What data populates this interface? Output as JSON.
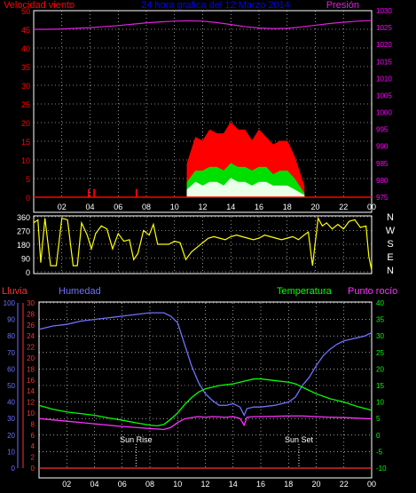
{
  "header": {
    "wind_label": "Velocidad viento",
    "title": "24 hora grafica del 12 Marzo 2014",
    "pressure_label": "Presión"
  },
  "colors": {
    "wind": "#ff0000",
    "gust_green": "#00e000",
    "gust_white": "#e8ffe8",
    "pressure": "#e020e0",
    "direction": "#ffff00",
    "humidity": "#7070ff",
    "temperature": "#00ff00",
    "dewpoint": "#ff30ff",
    "rain": "#ff3030",
    "title": "#0000ff",
    "axis_white": "#ffffff"
  },
  "chart_data": [
    {
      "type": "line",
      "name": "wind-pressure",
      "x_ticks": [
        "02",
        "04",
        "06",
        "08",
        "10",
        "12",
        "14",
        "16",
        "18",
        "20",
        "22",
        "00"
      ],
      "ylim_left": [
        0,
        50
      ],
      "y_ticks_left": [
        0,
        5,
        10,
        15,
        20,
        25,
        30,
        35,
        40,
        45,
        50
      ],
      "ylim_right": [
        975,
        1030
      ],
      "y_ticks_right": [
        975,
        980,
        985,
        990,
        995,
        1000,
        1005,
        1010,
        1015,
        1020,
        1025,
        1030
      ],
      "series": [
        {
          "axis": "right",
          "x": [
            0,
            1,
            2,
            3,
            4,
            5,
            6,
            7,
            8,
            9,
            10,
            11,
            12,
            13,
            14,
            15,
            16,
            17,
            18,
            19,
            20,
            21,
            22,
            23,
            24
          ],
          "y": [
            1024.5,
            1024.5,
            1024.6,
            1024.8,
            1025.0,
            1025.3,
            1025.6,
            1026.0,
            1026.4,
            1026.7,
            1026.9,
            1027.0,
            1026.9,
            1026.5,
            1025.9,
            1025.3,
            1024.9,
            1024.7,
            1024.8,
            1025.2,
            1025.7,
            1026.2,
            1026.6,
            1026.9,
            1027.1
          ]
        },
        {
          "axis": "left",
          "x": [
            10.9,
            11.5,
            12,
            12.5,
            13,
            13.5,
            14,
            14.5,
            15,
            15.5,
            16,
            16.5,
            17,
            17.5,
            18,
            18.5,
            19.2
          ],
          "y": [
            9,
            16,
            15,
            18,
            17,
            17,
            20,
            18,
            18,
            15,
            18,
            16,
            14,
            15,
            15,
            11,
            3
          ]
        },
        {
          "axis": "left",
          "x": [
            10.9,
            11.5,
            12,
            12.5,
            13,
            13.5,
            14,
            14.5,
            15,
            15.5,
            16,
            16.5,
            17,
            17.5,
            18,
            18.5,
            19.2
          ],
          "y": [
            4,
            7,
            7,
            8,
            8,
            7,
            9,
            8,
            8,
            7,
            8,
            8,
            6,
            7,
            7,
            5,
            1
          ]
        },
        {
          "axis": "left",
          "x": [
            10.9,
            11.5,
            12,
            12.5,
            13,
            13.5,
            14,
            14.5,
            15,
            15.5,
            16,
            16.5,
            17,
            17.5,
            18,
            18.5,
            19.2
          ],
          "y": [
            2,
            4,
            3,
            4,
            4,
            3,
            5,
            4,
            4,
            3,
            4,
            4,
            3,
            3,
            3,
            2,
            0.5
          ]
        },
        {
          "axis": "left",
          "x": [
            3.9,
            4.3,
            7.3
          ],
          "y": [
            1,
            1,
            1
          ]
        }
      ]
    },
    {
      "type": "line",
      "name": "wind-direction",
      "x_ticks": [
        "02",
        "04",
        "06",
        "08",
        "10",
        "12",
        "14",
        "16",
        "18",
        "20",
        "22",
        "00"
      ],
      "ylim": [
        0,
        360
      ],
      "y_ticks": [
        0,
        90,
        180,
        270,
        360
      ],
      "right_labels": [
        "N",
        "W",
        "S",
        "E",
        "N"
      ],
      "series": [
        {
          "x": [
            0,
            0.3,
            0.5,
            0.8,
            1.2,
            1.6,
            2.0,
            2.4,
            2.8,
            3.1,
            3.4,
            3.8,
            4.1,
            4.4,
            4.8,
            5.2,
            5.6,
            6.0,
            6.4,
            6.8,
            7.1,
            7.4,
            7.8,
            8.2,
            8.5,
            8.8,
            9.2,
            9.6,
            10.0,
            10.4,
            10.8,
            11.2,
            11.6,
            12.0,
            12.4,
            12.8,
            13.2,
            13.6,
            14.0,
            14.4,
            14.8,
            15.2,
            15.6,
            16.0,
            16.4,
            16.8,
            17.2,
            17.6,
            18.0,
            18.4,
            18.8,
            19.2,
            19.5,
            19.8,
            20.2,
            20.5,
            20.8,
            21.2,
            21.6,
            22.0,
            22.4,
            22.8,
            23.2,
            23.6,
            23.8,
            24.0
          ],
          "y": [
            320,
            340,
            60,
            350,
            40,
            40,
            350,
            340,
            40,
            40,
            320,
            240,
            150,
            250,
            300,
            280,
            150,
            250,
            200,
            210,
            80,
            120,
            270,
            240,
            310,
            180,
            180,
            180,
            200,
            190,
            80,
            130,
            160,
            190,
            220,
            230,
            220,
            210,
            230,
            240,
            230,
            220,
            210,
            220,
            240,
            230,
            220,
            210,
            220,
            230,
            210,
            240,
            260,
            40,
            350,
            300,
            320,
            280,
            310,
            280,
            330,
            340,
            290,
            300,
            100,
            10
          ]
        }
      ]
    },
    {
      "type": "line",
      "name": "humidity-temperature",
      "labels": {
        "rain": "Lluvia",
        "humidity": "Humedad",
        "temperature": "Temperatura",
        "dewpoint": "Punto rocío"
      },
      "annotations": [
        {
          "text": "Sun Rise",
          "x": 7.0
        },
        {
          "text": "Sun Set",
          "x": 18.75
        }
      ],
      "x_ticks": [
        "02",
        "04",
        "06",
        "08",
        "10",
        "12",
        "14",
        "16",
        "18",
        "20",
        "22",
        "00"
      ],
      "ylim_humidity": [
        0,
        100
      ],
      "y_ticks_humidity": [
        0,
        10,
        20,
        30,
        40,
        50,
        60,
        70,
        80,
        90,
        100
      ],
      "ylim_rain": [
        0,
        30
      ],
      "y_ticks_rain": [
        0,
        2,
        4,
        6,
        8,
        10,
        12,
        14,
        16,
        18,
        20,
        22,
        24,
        26,
        28,
        30
      ],
      "ylim_temp": [
        -10,
        40
      ],
      "y_ticks_temp": [
        -10,
        -5,
        0,
        5,
        10,
        15,
        20,
        25,
        30,
        35,
        40
      ],
      "series": [
        {
          "axis": "humidity",
          "x": [
            0,
            1,
            2,
            3,
            4,
            5,
            6,
            7,
            8,
            9,
            9.5,
            10,
            10.5,
            11,
            11.5,
            12,
            12.5,
            13,
            13.5,
            14,
            14.5,
            14.8,
            15,
            15.5,
            16,
            17,
            18,
            18.5,
            19,
            19.5,
            20,
            20.5,
            21,
            21.5,
            22,
            22.5,
            23,
            23.5,
            24
          ],
          "y": [
            84,
            86,
            87,
            89,
            90,
            91,
            92,
            93,
            94,
            94,
            92,
            88,
            75,
            62,
            52,
            45,
            41,
            38,
            38,
            39,
            37,
            32,
            36,
            37,
            37,
            38,
            40,
            43,
            50,
            55,
            62,
            68,
            72,
            75,
            77,
            78,
            79,
            80,
            82
          ]
        },
        {
          "axis": "temp",
          "x": [
            0,
            1,
            2,
            3,
            4,
            5,
            6,
            7,
            8,
            8.5,
            9,
            9.5,
            10,
            10.5,
            11,
            11.5,
            12,
            12.5,
            13,
            14,
            15,
            15.5,
            16,
            17,
            18,
            18.5,
            19,
            20,
            21,
            22,
            23,
            24
          ],
          "y": [
            9,
            7.8,
            7,
            6.5,
            6,
            5.2,
            4.5,
            3.7,
            3,
            2.8,
            3.2,
            4.8,
            6.7,
            9.2,
            11.3,
            13,
            14,
            14.5,
            15,
            15.5,
            16.5,
            17,
            17,
            16.5,
            16,
            15.5,
            14.5,
            12.5,
            11,
            10,
            8.6,
            7.5
          ]
        },
        {
          "axis": "temp",
          "x": [
            0,
            1,
            2,
            3,
            4,
            5,
            6,
            7,
            8,
            9,
            9.5,
            10,
            10.5,
            11,
            11.5,
            12,
            12.5,
            13,
            13.5,
            14,
            14.5,
            14.8,
            15,
            15.5,
            16,
            17,
            18,
            19,
            20,
            21,
            22,
            23,
            24
          ],
          "y": [
            5,
            4.6,
            4.2,
            3.8,
            3.4,
            3,
            2.6,
            2.3,
            2,
            1.7,
            2.3,
            3.8,
            4.9,
            5.3,
            5.6,
            5.4,
            5.6,
            5.5,
            5.4,
            5.6,
            5,
            3,
            5.4,
            5.6,
            5.6,
            5.7,
            5.8,
            5.8,
            5.6,
            5.4,
            5.3,
            5.1,
            4.9
          ]
        },
        {
          "axis": "rain",
          "x": [
            0,
            24
          ],
          "y": [
            0,
            0
          ]
        }
      ]
    }
  ]
}
